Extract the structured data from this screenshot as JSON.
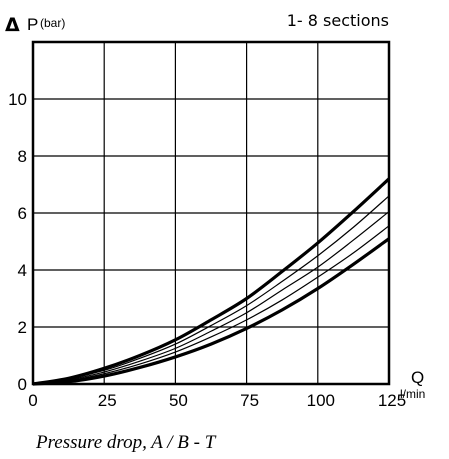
{
  "chart_data": {
    "type": "line",
    "y_axis_symbol": "Δ",
    "ylabel_main": "P",
    "ylabel_unit": "(bar)",
    "xlabel_main": "Q",
    "xlabel_unit": "l/min",
    "subtitle": "1- 8 sections",
    "caption": "Pressure drop, A / B - T",
    "xlim": [
      0,
      125
    ],
    "ylim": [
      0,
      12
    ],
    "x_ticks": [
      "0",
      "25",
      "50",
      "75",
      "100",
      "125"
    ],
    "y_ticks": [
      "0",
      "2",
      "4",
      "6",
      "8",
      "10"
    ],
    "grid": true,
    "series": [
      {
        "x": [
          0,
          12.5,
          25,
          37.5,
          50,
          62.5,
          75,
          87.5,
          100,
          112.5,
          125
        ],
        "y": [
          0,
          0.2,
          0.55,
          1.0,
          1.55,
          2.25,
          3.0,
          3.95,
          4.95,
          6.05,
          7.2
        ],
        "weight": "bold"
      },
      {
        "x": [
          0,
          12.5,
          25,
          37.5,
          50,
          62.5,
          75,
          87.5,
          100,
          112.5,
          125
        ],
        "y": [
          0,
          0.18,
          0.48,
          0.9,
          1.4,
          2.05,
          2.75,
          3.6,
          4.5,
          5.5,
          6.6
        ],
        "weight": "thin"
      },
      {
        "x": [
          0,
          12.5,
          25,
          37.5,
          50,
          62.5,
          75,
          87.5,
          100,
          112.5,
          125
        ],
        "y": [
          0,
          0.15,
          0.42,
          0.8,
          1.25,
          1.85,
          2.5,
          3.3,
          4.1,
          5.05,
          6.05
        ],
        "weight": "thin"
      },
      {
        "x": [
          0,
          12.5,
          25,
          37.5,
          50,
          62.5,
          75,
          87.5,
          100,
          112.5,
          125
        ],
        "y": [
          0,
          0.12,
          0.36,
          0.7,
          1.12,
          1.65,
          2.25,
          2.95,
          3.75,
          4.6,
          5.55
        ],
        "weight": "thin"
      },
      {
        "x": [
          0,
          12.5,
          25,
          37.5,
          50,
          62.5,
          75,
          87.5,
          100,
          112.5,
          125
        ],
        "y": [
          0,
          0.08,
          0.28,
          0.58,
          0.95,
          1.4,
          1.95,
          2.6,
          3.35,
          4.2,
          5.1
        ],
        "weight": "bold"
      }
    ]
  }
}
